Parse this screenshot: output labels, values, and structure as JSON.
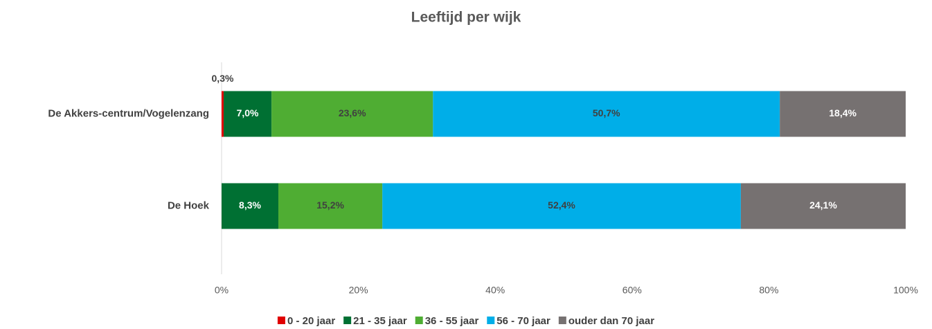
{
  "chart_data": {
    "type": "stacked_barh",
    "title": "Leeftijd per wijk",
    "categories": [
      "De Akkers-centrum/Vogelenzang",
      "De Hoek"
    ],
    "series": [
      {
        "name": "0 - 20 jaar",
        "color": "#e00000",
        "label_color": "#404040",
        "values": [
          0.3,
          0
        ],
        "value_labels": [
          "0,3%",
          null
        ]
      },
      {
        "name": "21 - 35 jaar",
        "color": "#007033",
        "label_color": "#ffffff",
        "values": [
          7.0,
          8.3
        ],
        "value_labels": [
          "7,0%",
          "8,3%"
        ]
      },
      {
        "name": "36 - 55 jaar",
        "color": "#4fad33",
        "label_color": "#404040",
        "values": [
          23.6,
          15.2
        ],
        "value_labels": [
          "23,6%",
          "15,2%"
        ]
      },
      {
        "name": "56 - 70 jaar",
        "color": "#00aee8",
        "label_color": "#404040",
        "values": [
          50.7,
          52.4
        ],
        "value_labels": [
          "50,7%",
          "52,4%"
        ]
      },
      {
        "name": "ouder dan 70 jaar",
        "color": "#767171",
        "label_color": "#ffffff",
        "values": [
          18.4,
          24.1
        ],
        "value_labels": [
          "18,4%",
          "24,1%"
        ]
      }
    ],
    "xlim": [
      0,
      100
    ],
    "xticks": [
      {
        "value": 0,
        "label": "0%"
      },
      {
        "value": 20,
        "label": "20%"
      },
      {
        "value": 40,
        "label": "40%"
      },
      {
        "value": 60,
        "label": "60%"
      },
      {
        "value": 80,
        "label": "80%"
      },
      {
        "value": 100,
        "label": "100%"
      }
    ],
    "legend": "bottom"
  }
}
